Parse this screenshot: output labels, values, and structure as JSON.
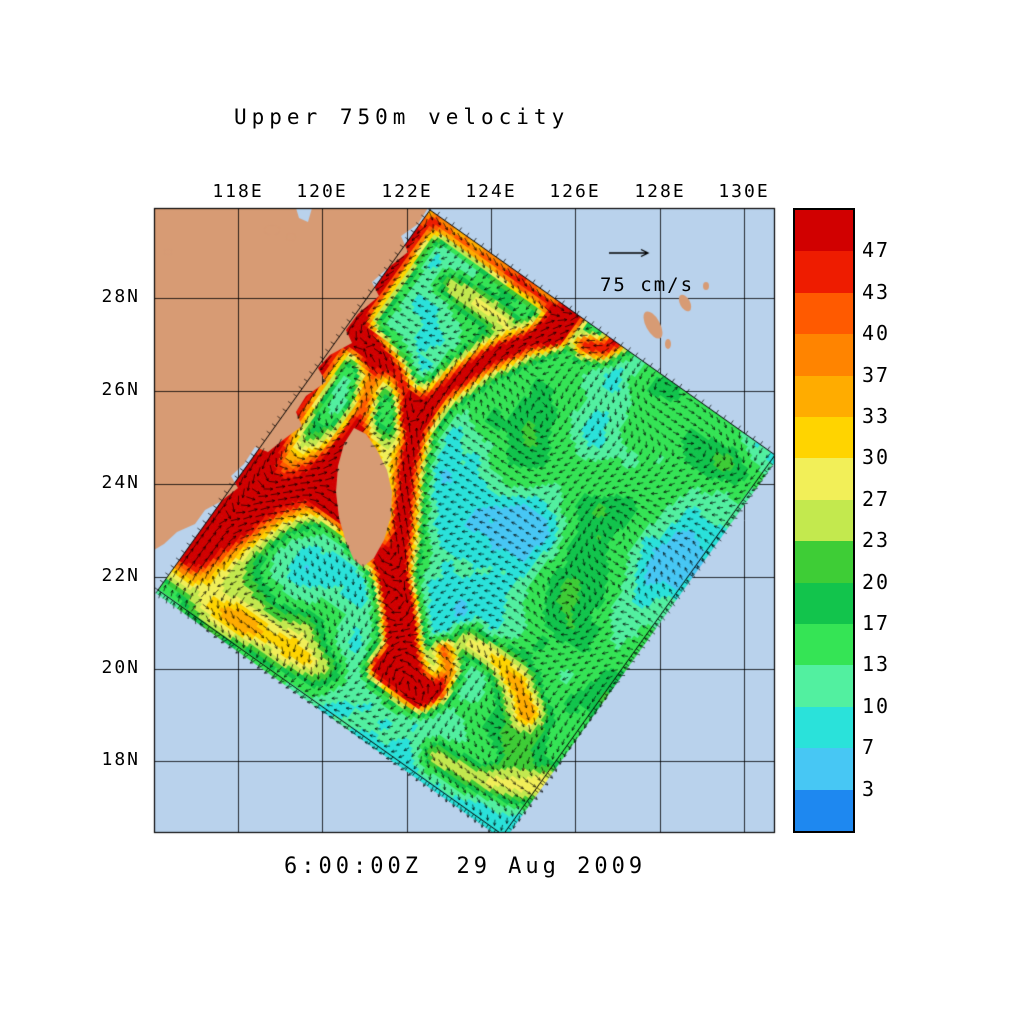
{
  "title": "Upper 750m velocity",
  "timestamp": "6:00:00Z  29 Aug 2009",
  "reference_vector": {
    "label": "75 cm/s",
    "value_cm_s": 75
  },
  "axes": {
    "lon_ticks": [
      "118E",
      "120E",
      "122E",
      "124E",
      "126E",
      "128E",
      "130E"
    ],
    "lat_ticks": [
      "28N",
      "26N",
      "24N",
      "22N",
      "20N",
      "18N"
    ]
  },
  "colorbar": {
    "units": "cm/s",
    "labels": [
      "47",
      "43",
      "40",
      "37",
      "33",
      "30",
      "27",
      "23",
      "20",
      "17",
      "13",
      "10",
      "7",
      "3"
    ],
    "colors": [
      "#d10000",
      "#ee1c00",
      "#ff5a00",
      "#ff8400",
      "#ffac00",
      "#ffd400",
      "#f2ef58",
      "#c3e94e",
      "#3ecd36",
      "#12c44c",
      "#35e455",
      "#52f0a0",
      "#2ae2da",
      "#47c7f4",
      "#1e88f0"
    ]
  },
  "map": {
    "land_color": "#d79b74",
    "ocean_color": "#b9d2ec",
    "arrow_color": "#000000"
  },
  "chart_data": {
    "type": "heatmap",
    "title": "Upper 750m velocity",
    "subtitle": "6:00:00Z  29 Aug 2009",
    "variable": "upper-ocean (0-750 m) current speed with velocity vector arrows",
    "units": "cm/s",
    "x": {
      "label": "longitude",
      "ticks": [
        "118E",
        "120E",
        "122E",
        "124E",
        "126E",
        "128E",
        "130E"
      ],
      "range_deg_e": [
        116.0,
        130.7
      ]
    },
    "y": {
      "label": "latitude",
      "ticks": [
        "28N",
        "26N",
        "24N",
        "22N",
        "20N",
        "18N"
      ],
      "range_deg_n": [
        16.4,
        30.0
      ]
    },
    "speed_levels": [
      3,
      7,
      10,
      13,
      17,
      20,
      23,
      27,
      30,
      33,
      37,
      40,
      43,
      47
    ],
    "palette_high_to_low": [
      "#d10000",
      "#ee1c00",
      "#ff5a00",
      "#ff8400",
      "#ffac00",
      "#ffd400",
      "#f2ef58",
      "#c3e94e",
      "#3ecd36",
      "#12c44c",
      "#35e455",
      "#52f0a0",
      "#2ae2da",
      "#47c7f4",
      "#1e88f0"
    ],
    "reference_vector_cm_s": 75,
    "legend_position": "right colorbar",
    "notes": "Rotated curvilinear model domain around Taiwan. Strong currents (red, >40 cm/s): Kuroshio east of Taiwan meandering northeastward, and jets in/around the Taiwan Strait along the China coast; green mesoscale eddies (~15-25 cm/s) over a cyan/blue background (<13 cm/s); tan land: China coast, Taiwan, Ryukyu islands."
  }
}
